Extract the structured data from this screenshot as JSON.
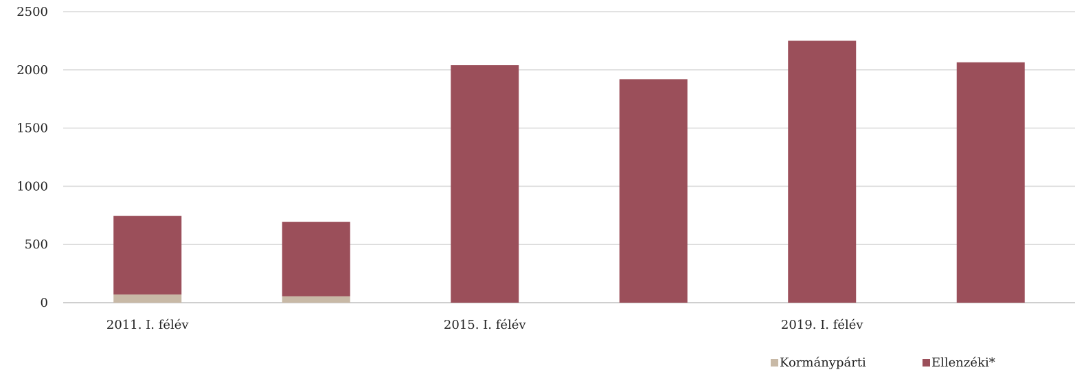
{
  "chart_data": {
    "type": "bar",
    "stacked": true,
    "categories": [
      "2011. I. félév",
      "",
      "2015. I. félév",
      "",
      "2019. I. félév",
      ""
    ],
    "series": [
      {
        "name": "Kormánypárti",
        "color": "#c8b9a6",
        "values": [
          70,
          55,
          0,
          0,
          0,
          0
        ]
      },
      {
        "name": "Ellenzéki*",
        "color": "#9b4f5a",
        "values": [
          675,
          640,
          2040,
          1920,
          2250,
          2065
        ]
      }
    ],
    "yticks": [
      0,
      500,
      1000,
      1500,
      2000,
      2500
    ],
    "ylim": [
      0,
      2500
    ],
    "grid": true,
    "legend_position": "bottom-right"
  }
}
